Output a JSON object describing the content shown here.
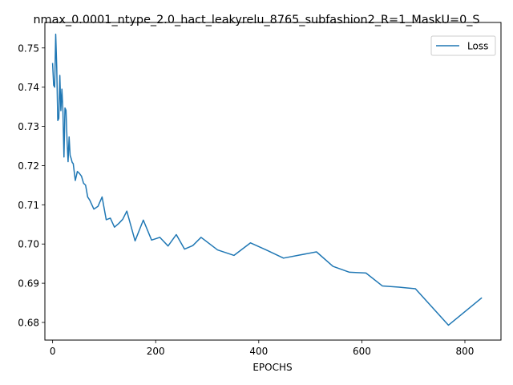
{
  "chart_data": {
    "type": "line",
    "title": "nmax_0.0001_ntype_2.0_hact_leakyrelu_8765_subfashion2_R=1_MaskU=0_S",
    "xlabel": "EPOCHS",
    "ylabel": "",
    "xlim": [
      -15,
      870
    ],
    "ylim": [
      0.6755,
      0.7565
    ],
    "xticks": [
      0,
      200,
      400,
      600,
      800
    ],
    "yticks": [
      0.68,
      0.69,
      0.7,
      0.71,
      0.72,
      0.73,
      0.74,
      0.75
    ],
    "ytick_labels": [
      "0.68",
      "0.69",
      "0.70",
      "0.71",
      "0.72",
      "0.73",
      "0.74",
      "0.75"
    ],
    "grid": false,
    "legend_position": "top-right",
    "series": [
      {
        "name": "Loss",
        "color": "#1f77b4",
        "x": [
          0,
          2,
          4,
          6,
          8,
          10,
          12,
          14,
          16,
          18,
          20,
          22,
          24,
          26,
          28,
          30,
          32,
          34,
          36,
          38,
          40,
          44,
          48,
          52,
          56,
          60,
          64,
          68,
          72,
          80,
          88,
          96,
          104,
          112,
          120,
          128,
          136,
          144,
          160,
          176,
          192,
          208,
          224,
          240,
          256,
          272,
          288,
          320,
          352,
          384,
          416,
          448,
          480,
          512,
          544,
          576,
          608,
          640,
          672,
          704,
          768,
          832
        ],
        "y": [
          0.746,
          0.7405,
          0.74,
          0.7535,
          0.745,
          0.7315,
          0.732,
          0.743,
          0.734,
          0.7395,
          0.734,
          0.7222,
          0.7347,
          0.7341,
          0.7264,
          0.721,
          0.7273,
          0.7226,
          0.7218,
          0.7208,
          0.7205,
          0.7162,
          0.7185,
          0.718,
          0.7173,
          0.7155,
          0.715,
          0.712,
          0.7112,
          0.7089,
          0.7096,
          0.712,
          0.7062,
          0.7066,
          0.7043,
          0.7052,
          0.7063,
          0.7084,
          0.7008,
          0.7061,
          0.701,
          0.7017,
          0.6995,
          0.7024,
          0.6987,
          0.6996,
          0.7017,
          0.6985,
          0.6971,
          0.7003,
          0.6984,
          0.6964,
          0.6972,
          0.698,
          0.6943,
          0.6928,
          0.6926,
          0.6893,
          0.689,
          0.6886,
          0.6793,
          0.6862
        ]
      }
    ]
  }
}
